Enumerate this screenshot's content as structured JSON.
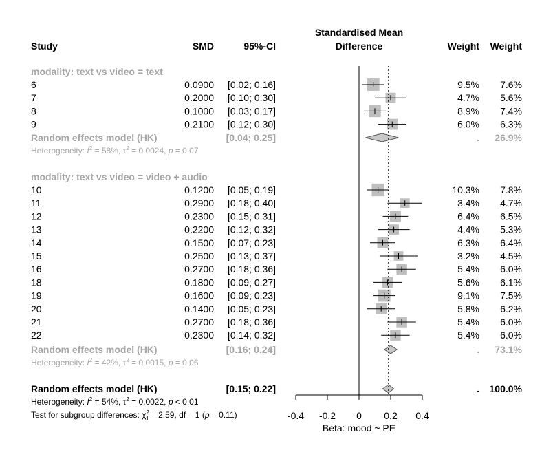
{
  "chart_data": {
    "type": "forest",
    "headers": {
      "study": "Study",
      "smd": "SMD",
      "ci": "95%-CI",
      "plot_line1": "Standardised Mean",
      "plot_line2": "Difference",
      "weight_common": "Weight",
      "weight_random": "Weight"
    },
    "xlabel": "Beta: mood ~ PE",
    "xlim": [
      -0.4,
      0.4
    ],
    "xticks": [
      "-0.4",
      "-0.2",
      "0",
      "0.2",
      "0.4"
    ],
    "overall_effect": 0.186,
    "subgroups": [
      {
        "label": "modality: text vs video = text",
        "studies": [
          {
            "study": "6",
            "smd": 0.09,
            "smd_text": "0.0900",
            "lo": 0.02,
            "hi": 0.16,
            "ci_text": "[0.02; 0.16]",
            "w_common": "9.5%",
            "w_random": "7.6%",
            "w": 9.5
          },
          {
            "study": "7",
            "smd": 0.2,
            "smd_text": "0.2000",
            "lo": 0.1,
            "hi": 0.3,
            "ci_text": "[0.10; 0.30]",
            "w_common": "4.7%",
            "w_random": "5.6%",
            "w": 4.7
          },
          {
            "study": "8",
            "smd": 0.1,
            "smd_text": "0.1000",
            "lo": 0.03,
            "hi": 0.17,
            "ci_text": "[0.03; 0.17]",
            "w_common": "8.9%",
            "w_random": "7.4%",
            "w": 8.9
          },
          {
            "study": "9",
            "smd": 0.21,
            "smd_text": "0.2100",
            "lo": 0.12,
            "hi": 0.3,
            "ci_text": "[0.12; 0.30]",
            "w_common": "6.0%",
            "w_random": "6.3%",
            "w": 6.0
          }
        ],
        "model": {
          "label": "Random effects model (HK)",
          "est": 0.145,
          "lo": 0.04,
          "hi": 0.25,
          "ci_text": "[0.04; 0.25]",
          "w_common": ".",
          "w_random": "26.9%"
        },
        "heterogeneity": {
          "prefix": "Heterogeneity: ",
          "i2": "I",
          "i2_value": " = 58%, ",
          "tau": "τ",
          "tau_value": " = 0.0024, ",
          "p": "p",
          "p_value": " = 0.07"
        }
      },
      {
        "label": "modality: text vs video = video + audio",
        "studies": [
          {
            "study": "10",
            "smd": 0.12,
            "smd_text": "0.1200",
            "lo": 0.05,
            "hi": 0.19,
            "ci_text": "[0.05; 0.19]",
            "w_common": "10.3%",
            "w_random": "7.8%",
            "w": 10.3
          },
          {
            "study": "11",
            "smd": 0.29,
            "smd_text": "0.2900",
            "lo": 0.18,
            "hi": 0.4,
            "ci_text": "[0.18; 0.40]",
            "w_common": "3.4%",
            "w_random": "4.7%",
            "w": 3.4
          },
          {
            "study": "12",
            "smd": 0.23,
            "smd_text": "0.2300",
            "lo": 0.15,
            "hi": 0.31,
            "ci_text": "[0.15; 0.31]",
            "w_common": "6.4%",
            "w_random": "6.5%",
            "w": 6.4
          },
          {
            "study": "13",
            "smd": 0.22,
            "smd_text": "0.2200",
            "lo": 0.12,
            "hi": 0.32,
            "ci_text": "[0.12; 0.32]",
            "w_common": "4.4%",
            "w_random": "5.3%",
            "w": 4.4
          },
          {
            "study": "14",
            "smd": 0.15,
            "smd_text": "0.1500",
            "lo": 0.07,
            "hi": 0.23,
            "ci_text": "[0.07; 0.23]",
            "w_common": "6.3%",
            "w_random": "6.4%",
            "w": 6.3
          },
          {
            "study": "15",
            "smd": 0.25,
            "smd_text": "0.2500",
            "lo": 0.13,
            "hi": 0.37,
            "ci_text": "[0.13; 0.37]",
            "w_common": "3.2%",
            "w_random": "4.5%",
            "w": 3.2
          },
          {
            "study": "16",
            "smd": 0.27,
            "smd_text": "0.2700",
            "lo": 0.18,
            "hi": 0.36,
            "ci_text": "[0.18; 0.36]",
            "w_common": "5.4%",
            "w_random": "6.0%",
            "w": 5.4
          },
          {
            "study": "18",
            "smd": 0.18,
            "smd_text": "0.1800",
            "lo": 0.09,
            "hi": 0.27,
            "ci_text": "[0.09; 0.27]",
            "w_common": "5.6%",
            "w_random": "6.1%",
            "w": 5.6
          },
          {
            "study": "19",
            "smd": 0.16,
            "smd_text": "0.1600",
            "lo": 0.09,
            "hi": 0.23,
            "ci_text": "[0.09; 0.23]",
            "w_common": "9.1%",
            "w_random": "7.5%",
            "w": 9.1
          },
          {
            "study": "20",
            "smd": 0.14,
            "smd_text": "0.1400",
            "lo": 0.05,
            "hi": 0.23,
            "ci_text": "[0.05; 0.23]",
            "w_common": "5.8%",
            "w_random": "6.2%",
            "w": 5.8
          },
          {
            "study": "21",
            "smd": 0.27,
            "smd_text": "0.2700",
            "lo": 0.18,
            "hi": 0.36,
            "ci_text": "[0.18; 0.36]",
            "w_common": "5.4%",
            "w_random": "6.0%",
            "w": 5.4
          },
          {
            "study": "22",
            "smd": 0.23,
            "smd_text": "0.2300",
            "lo": 0.14,
            "hi": 0.32,
            "ci_text": "[0.14; 0.32]",
            "w_common": "5.4%",
            "w_random": "6.0%",
            "w": 5.4
          }
        ],
        "model": {
          "label": "Random effects model (HK)",
          "est": 0.2,
          "lo": 0.16,
          "hi": 0.24,
          "ci_text": "[0.16; 0.24]",
          "w_common": ".",
          "w_random": "73.1%"
        },
        "heterogeneity": {
          "prefix": "Heterogeneity: ",
          "i2": "I",
          "i2_value": " = 42%, ",
          "tau": "τ",
          "tau_value": " = 0.0015, ",
          "p": "p",
          "p_value": " = 0.06"
        }
      }
    ],
    "overall_model": {
      "label": "Random effects model (HK)",
      "est": 0.186,
      "lo": 0.15,
      "hi": 0.22,
      "ci_text": "[0.15; 0.22]",
      "w_common": ".",
      "w_random": "100.0%"
    },
    "overall_heterogeneity": {
      "prefix": "Heterogeneity: ",
      "i2": "I",
      "i2_value": " = 54%, ",
      "tau": "τ",
      "tau_value": " = 0.0022, ",
      "p": "p",
      "p_value": " < 0.01"
    },
    "subgroup_test": {
      "prefix": "Test for subgroup differences: ",
      "chi": "χ",
      "chi_sub": "1",
      "chi_sup": "2",
      "mid": " = 2.59, df = 1 (",
      "p": "p",
      "p_value": " = 0.11)"
    },
    "colors": {
      "box": "#bfbfbf",
      "grey_text": "#a6a6a6",
      "diamond_fill": "#c8c8c8",
      "text": "#000000"
    }
  }
}
